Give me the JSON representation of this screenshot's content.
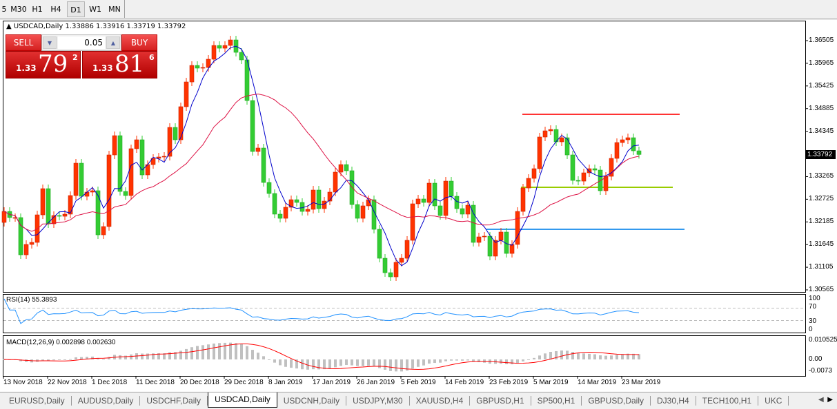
{
  "toolbar": {
    "timeframes": [
      {
        "label": "5"
      },
      {
        "label": "M30"
      },
      {
        "label": "H1"
      },
      {
        "label": "H4"
      },
      {
        "label": "D1",
        "active": true
      },
      {
        "label": "W1"
      },
      {
        "label": "MN"
      }
    ]
  },
  "chart": {
    "title": "USDCAD,Daily",
    "ohlc_text": "1.33886 1.33916 1.33719 1.33792",
    "trade_panel": {
      "sell_label": "SELL",
      "buy_label": "BUY",
      "lot": "0.05",
      "bid": {
        "prefix": "1.33",
        "main": "79",
        "sup": "2"
      },
      "ask": {
        "prefix": "1.33",
        "main": "81",
        "sup": "6"
      }
    },
    "price_axis": [
      "1.36505",
      "1.35965",
      "1.35425",
      "1.34885",
      "1.34345",
      "1.33265",
      "1.32725",
      "1.32185",
      "1.31645",
      "1.31105",
      "1.30565"
    ],
    "last_price": "1.33792",
    "rsi": {
      "label": "RSI(14) 55.3893",
      "axis": [
        "100",
        "70",
        "30",
        "0"
      ]
    },
    "macd": {
      "label": "MACD(12,26,9) 0.002898 0.002630",
      "axis": [
        "0.010525",
        "0.00",
        "-0.0073"
      ]
    },
    "date_axis": [
      "13 Nov 2018",
      "22 Nov 2018",
      "1 Dec 2018",
      "11 Dec 2018",
      "20 Dec 2018",
      "29 Dec 2018",
      "8 Jan 2019",
      "17 Jan 2019",
      "26 Jan 2019",
      "5 Feb 2019",
      "14 Feb 2019",
      "23 Feb 2019",
      "5 Mar 2019",
      "14 Mar 2019",
      "23 Mar 2019"
    ]
  },
  "colors": {
    "bull": "#ff3300",
    "bear": "#33cc33",
    "ma_fast": "#0000cc",
    "ma_slow": "#dd1144",
    "rsi": "#1e90ff",
    "macd_hist": "#c0c0c0",
    "macd_signal": "#ff0000",
    "line_resistance": "#ff3333",
    "line_mid": "#99cc00",
    "line_support": "#3399ee"
  },
  "chart_data": {
    "type": "candlestick",
    "symbol": "USDCAD",
    "timeframe": "Daily",
    "ylim": [
      1.30565,
      1.36505
    ],
    "first_open": 1.32173,
    "close": [
      1.32435,
      1.32288,
      1.32288,
      1.31401,
      1.31648,
      1.31697,
      1.32353,
      1.32977,
      1.3214,
      1.32337,
      1.3232,
      1.3237,
      1.32813,
      1.33584,
      1.32796,
      1.32895,
      1.32928,
      1.31877,
      1.32074,
      1.33781,
      1.3424,
      1.32911,
      1.32813,
      1.33929,
      1.34142,
      1.33305,
      1.33551,
      1.33699,
      1.33732,
      1.33748,
      1.34437,
      1.34142,
      1.3493,
      1.3552,
      1.35914,
      1.35849,
      1.35865,
      1.36062,
      1.3639,
      1.36324,
      1.3639,
      1.36521,
      1.36226,
      1.36046,
      1.35077,
      1.33863,
      1.33945,
      1.33125,
      1.32862,
      1.3237,
      1.32271,
      1.32534,
      1.32714,
      1.32649,
      1.32435,
      1.32485,
      1.32944,
      1.32501,
      1.32681,
      1.32895,
      1.33371,
      1.33551,
      1.33404,
      1.32599,
      1.32271,
      1.32567,
      1.32714,
      1.32009,
      1.31319,
      1.30975,
      1.30876,
      1.31221,
      1.31319,
      1.31746,
      1.32616,
      1.32731,
      1.32649,
      1.33108,
      1.32567,
      1.32337,
      1.33157,
      1.32796,
      1.32501,
      1.3237,
      1.32583,
      1.31697,
      1.31828,
      1.31845,
      1.31369,
      1.31746,
      1.31943,
      1.31434,
      1.31648,
      1.32435,
      1.32993,
      1.33223,
      1.33453,
      1.34208,
      1.34355,
      1.34388,
      1.34093,
      1.34191,
      1.33781,
      1.33174,
      1.33157,
      1.33354,
      1.33453,
      1.3342,
      1.32928,
      1.33272,
      1.33699,
      1.34076,
      1.34142,
      1.34191,
      1.33879,
      1.33792
    ],
    "horizontal_lines": [
      {
        "price": 1.34749,
        "color": "red"
      },
      {
        "price": 1.3301,
        "color": "yellow-green"
      },
      {
        "price": 1.32009,
        "color": "blue"
      }
    ]
  },
  "tabs": [
    {
      "label": "EURUSD,Daily"
    },
    {
      "label": "AUDUSD,Daily"
    },
    {
      "label": "USDCHF,Daily"
    },
    {
      "label": "USDCAD,Daily",
      "active": true
    },
    {
      "label": "USDCNH,Daily"
    },
    {
      "label": "USDJPY,M30"
    },
    {
      "label": "XAUUSD,H4"
    },
    {
      "label": "GBPUSD,H1"
    },
    {
      "label": "SP500,H1"
    },
    {
      "label": "GBPUSD,Daily"
    },
    {
      "label": "DJ30,H4"
    },
    {
      "label": "TECH100,H1"
    },
    {
      "label": "UKC"
    }
  ],
  "tab_nav": {
    "prev": "◀",
    "next": "▶"
  }
}
